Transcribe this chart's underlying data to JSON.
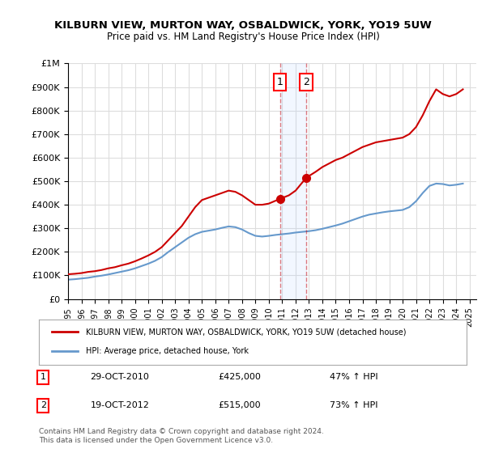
{
  "title": "KILBURN VIEW, MURTON WAY, OSBALDWICK, YORK, YO19 5UW",
  "subtitle": "Price paid vs. HM Land Registry's House Price Index (HPI)",
  "background_color": "#ffffff",
  "plot_bg_color": "#ffffff",
  "grid_color": "#dddddd",
  "ylim": [
    0,
    1000000
  ],
  "yticks": [
    0,
    100000,
    200000,
    300000,
    400000,
    500000,
    600000,
    700000,
    800000,
    900000,
    1000000
  ],
  "ytick_labels": [
    "£0",
    "£100K",
    "£200K",
    "£300K",
    "£400K",
    "£500K",
    "£600K",
    "£700K",
    "£800K",
    "£900K",
    "£1M"
  ],
  "xlim_start": 1995.0,
  "xlim_end": 2025.5,
  "red_line_color": "#cc0000",
  "blue_line_color": "#6699cc",
  "sale1_x": 2010.83,
  "sale1_y": 425000,
  "sale2_x": 2012.8,
  "sale2_y": 515000,
  "sale_marker_color": "#cc0000",
  "vline_color": "#cc0000",
  "vline_alpha": 0.5,
  "vline_style": "--",
  "shade_color": "#aaccff",
  "shade_alpha": 0.15,
  "legend_label_red": "KILBURN VIEW, MURTON WAY, OSBALDWICK, YORK, YO19 5UW (detached house)",
  "legend_label_blue": "HPI: Average price, detached house, York",
  "annotation1_label": "1",
  "annotation1_date": "29-OCT-2010",
  "annotation1_price": "£425,000",
  "annotation1_hpi": "47% ↑ HPI",
  "annotation2_label": "2",
  "annotation2_date": "19-OCT-2012",
  "annotation2_price": "£515,000",
  "annotation2_hpi": "73% ↑ HPI",
  "footer": "Contains HM Land Registry data © Crown copyright and database right 2024.\nThis data is licensed under the Open Government Licence v3.0.",
  "red_data_x": [
    1995.0,
    1995.5,
    1996.0,
    1996.5,
    1997.0,
    1997.5,
    1998.0,
    1998.5,
    1999.0,
    1999.5,
    2000.0,
    2000.5,
    2001.0,
    2001.5,
    2002.0,
    2002.5,
    2003.0,
    2003.5,
    2004.0,
    2004.5,
    2005.0,
    2005.5,
    2006.0,
    2006.5,
    2007.0,
    2007.5,
    2008.0,
    2008.5,
    2009.0,
    2009.5,
    2010.0,
    2010.83,
    2011.5,
    2012.0,
    2012.8,
    2013.5,
    2014.0,
    2014.5,
    2015.0,
    2015.5,
    2016.0,
    2016.5,
    2017.0,
    2017.5,
    2018.0,
    2018.5,
    2019.0,
    2019.5,
    2020.0,
    2020.5,
    2021.0,
    2021.5,
    2022.0,
    2022.5,
    2023.0,
    2023.5,
    2024.0,
    2024.5
  ],
  "red_data_y": [
    105000,
    107000,
    110000,
    115000,
    118000,
    123000,
    130000,
    135000,
    143000,
    150000,
    160000,
    172000,
    185000,
    200000,
    220000,
    250000,
    280000,
    310000,
    350000,
    390000,
    420000,
    430000,
    440000,
    450000,
    460000,
    455000,
    440000,
    420000,
    400000,
    400000,
    405000,
    425000,
    440000,
    460000,
    515000,
    540000,
    560000,
    575000,
    590000,
    600000,
    615000,
    630000,
    645000,
    655000,
    665000,
    670000,
    675000,
    680000,
    685000,
    700000,
    730000,
    780000,
    840000,
    890000,
    870000,
    860000,
    870000,
    890000
  ],
  "blue_data_x": [
    1995.0,
    1995.5,
    1996.0,
    1996.5,
    1997.0,
    1997.5,
    1998.0,
    1998.5,
    1999.0,
    1999.5,
    2000.0,
    2000.5,
    2001.0,
    2001.5,
    2002.0,
    2002.5,
    2003.0,
    2003.5,
    2004.0,
    2004.5,
    2005.0,
    2005.5,
    2006.0,
    2006.5,
    2007.0,
    2007.5,
    2008.0,
    2008.5,
    2009.0,
    2009.5,
    2010.0,
    2010.5,
    2011.0,
    2011.5,
    2012.0,
    2012.5,
    2013.0,
    2013.5,
    2014.0,
    2014.5,
    2015.0,
    2015.5,
    2016.0,
    2016.5,
    2017.0,
    2017.5,
    2018.0,
    2018.5,
    2019.0,
    2019.5,
    2020.0,
    2020.5,
    2021.0,
    2021.5,
    2022.0,
    2022.5,
    2023.0,
    2023.5,
    2024.0,
    2024.5
  ],
  "blue_data_y": [
    82000,
    84000,
    87000,
    90000,
    95000,
    99000,
    104000,
    110000,
    116000,
    122000,
    130000,
    140000,
    150000,
    162000,
    178000,
    200000,
    220000,
    240000,
    260000,
    275000,
    285000,
    290000,
    295000,
    302000,
    308000,
    305000,
    295000,
    280000,
    268000,
    265000,
    268000,
    272000,
    275000,
    278000,
    282000,
    285000,
    288000,
    292000,
    298000,
    305000,
    312000,
    320000,
    330000,
    340000,
    350000,
    358000,
    363000,
    368000,
    372000,
    375000,
    378000,
    390000,
    415000,
    450000,
    480000,
    490000,
    488000,
    482000,
    485000,
    490000
  ]
}
